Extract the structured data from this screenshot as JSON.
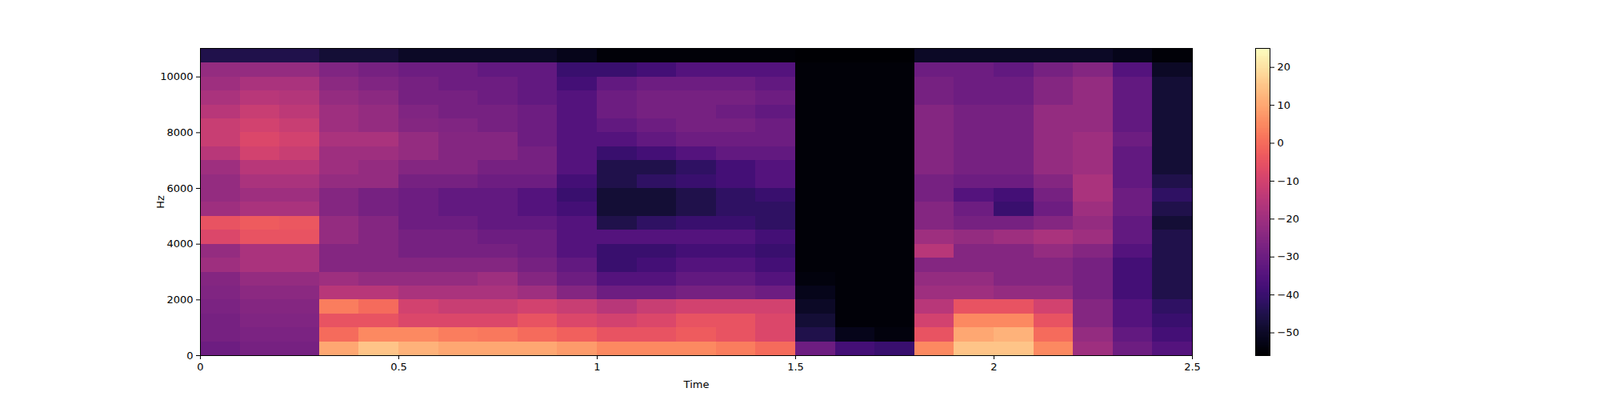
{
  "chart_data": {
    "type": "heatmap",
    "x_label": "Time",
    "y_label": "Hz",
    "xlim": [
      0,
      2.5
    ],
    "ylim": [
      0,
      11025
    ],
    "xticks": [
      0,
      0.5,
      1,
      1.5,
      2,
      2.5
    ],
    "yticks": [
      0,
      2000,
      4000,
      6000,
      8000,
      10000
    ],
    "cells": {
      "time_edges": [
        0,
        0.1,
        0.2,
        0.3,
        0.4,
        0.5,
        0.6,
        0.7,
        0.8,
        0.9,
        1.0,
        1.1,
        1.2,
        1.3,
        1.4,
        1.5,
        1.6,
        1.7,
        1.8,
        1.9,
        2.0,
        2.1,
        2.2,
        2.3,
        2.4,
        2.5
      ],
      "freq_edges": [
        0,
        500,
        1000,
        1500,
        2000,
        2500,
        3000,
        3500,
        4000,
        4500,
        5000,
        5500,
        6000,
        6500,
        7000,
        7500,
        8000,
        8500,
        9000,
        9500,
        10000,
        10500,
        11025
      ],
      "values": [
        [
          -30,
          -28,
          -28,
          -27,
          -26,
          -25,
          -20,
          -22,
          -8,
          -5,
          -20,
          -22,
          -22,
          -20,
          -15,
          -12,
          -12,
          -15,
          -18,
          -20,
          -22,
          -45
        ],
        [
          -28,
          -27,
          -26,
          -25,
          -24,
          -22,
          -18,
          -18,
          -5,
          -3,
          -18,
          -20,
          -18,
          -15,
          -10,
          -8,
          -10,
          -12,
          -15,
          -18,
          -22,
          -45
        ],
        [
          -28,
          -27,
          -26,
          -25,
          -24,
          -22,
          -18,
          -18,
          -5,
          -4,
          -18,
          -20,
          -18,
          -15,
          -12,
          -10,
          -12,
          -14,
          -16,
          -18,
          -22,
          -45
        ],
        [
          10,
          0,
          -5,
          3,
          -15,
          -20,
          -25,
          -25,
          -22,
          -22,
          -25,
          -25,
          -22,
          -20,
          -20,
          -18,
          -20,
          -20,
          -22,
          -24,
          -26,
          -48
        ],
        [
          15,
          5,
          -5,
          0,
          -15,
          -22,
          -25,
          -25,
          -25,
          -25,
          -28,
          -28,
          -22,
          -22,
          -20,
          -18,
          -22,
          -22,
          -24,
          -26,
          -28,
          -48
        ],
        [
          12,
          5,
          -8,
          -10,
          -18,
          -22,
          -25,
          -28,
          -28,
          -30,
          -30,
          -30,
          -28,
          -25,
          -22,
          -22,
          -25,
          -26,
          -28,
          -28,
          -30,
          -50
        ],
        [
          10,
          3,
          -8,
          -12,
          -18,
          -22,
          -25,
          -28,
          -28,
          -30,
          -32,
          -32,
          -28,
          -25,
          -25,
          -25,
          -26,
          -28,
          -28,
          -30,
          -30,
          -50
        ],
        [
          10,
          2,
          -8,
          -12,
          -18,
          -20,
          -25,
          -28,
          -30,
          -32,
          -32,
          -32,
          -30,
          -28,
          -25,
          -25,
          -28,
          -28,
          -30,
          -30,
          -32,
          -50
        ],
        [
          10,
          0,
          -5,
          -10,
          -20,
          -25,
          -28,
          -30,
          -30,
          -32,
          -35,
          -35,
          -30,
          -28,
          -28,
          -30,
          -30,
          -30,
          -32,
          -32,
          -32,
          -50
        ],
        [
          8,
          -2,
          -8,
          -12,
          -25,
          -30,
          -32,
          -35,
          -35,
          -35,
          -38,
          -40,
          -38,
          -35,
          -35,
          -35,
          -35,
          -35,
          -35,
          -38,
          -40,
          -52
        ],
        [
          5,
          -5,
          -10,
          -15,
          -30,
          -35,
          -40,
          -40,
          -35,
          -45,
          -48,
          -48,
          -45,
          -45,
          -40,
          -35,
          -32,
          -30,
          -30,
          -32,
          -40,
          -55
        ],
        [
          5,
          -5,
          -8,
          -12,
          -30,
          -35,
          -38,
          -40,
          -35,
          -42,
          -48,
          -48,
          -42,
          -45,
          -38,
          -32,
          -30,
          -28,
          -28,
          -30,
          -38,
          -55
        ],
        [
          5,
          -3,
          -5,
          -10,
          -28,
          -32,
          -35,
          -38,
          -35,
          -40,
          -45,
          -45,
          -40,
          -42,
          -35,
          -30,
          -28,
          -28,
          -28,
          -30,
          -35,
          -55
        ],
        [
          3,
          -5,
          -5,
          -10,
          -28,
          -32,
          -35,
          -38,
          -35,
          -40,
          -42,
          -42,
          -38,
          -38,
          -32,
          -30,
          -28,
          -30,
          -28,
          -30,
          -35,
          -55
        ],
        [
          0,
          -8,
          -8,
          -10,
          -30,
          -35,
          -38,
          -40,
          -38,
          -42,
          -42,
          -40,
          -35,
          -35,
          -32,
          -30,
          -30,
          -32,
          -30,
          -32,
          -35,
          -55
        ],
        [
          -30,
          -45,
          -48,
          -50,
          -52,
          -54,
          -55,
          -55,
          -55,
          -55,
          -55,
          -55,
          -55,
          -55,
          -55,
          -55,
          -55,
          -55,
          -55,
          -55,
          -55,
          -56
        ],
        [
          -38,
          -52,
          -55,
          -55,
          -55,
          -55,
          -55,
          -55,
          -55,
          -55,
          -55,
          -55,
          -55,
          -55,
          -55,
          -55,
          -55,
          -55,
          -55,
          -55,
          -55,
          -56
        ],
        [
          -40,
          -54,
          -55,
          -55,
          -55,
          -55,
          -55,
          -55,
          -55,
          -55,
          -55,
          -55,
          -55,
          -55,
          -55,
          -55,
          -55,
          -55,
          -55,
          -55,
          -55,
          -56
        ],
        [
          5,
          -5,
          -10,
          -15,
          -20,
          -22,
          -25,
          -15,
          -20,
          -25,
          -25,
          -28,
          -28,
          -25,
          -25,
          -25,
          -25,
          -25,
          -28,
          -28,
          -30,
          -50
        ],
        [
          15,
          10,
          5,
          -5,
          -20,
          -22,
          -25,
          -25,
          -22,
          -28,
          -30,
          -35,
          -30,
          -28,
          -28,
          -28,
          -28,
          -28,
          -30,
          -30,
          -30,
          -50
        ],
        [
          15,
          12,
          5,
          -5,
          -22,
          -25,
          -25,
          -25,
          -20,
          -28,
          -40,
          -38,
          -30,
          -28,
          -28,
          -28,
          -28,
          -28,
          -30,
          -30,
          -32,
          -50
        ],
        [
          5,
          0,
          -5,
          -10,
          -22,
          -25,
          -25,
          -22,
          -18,
          -25,
          -30,
          -28,
          -25,
          -22,
          -22,
          -22,
          -22,
          -22,
          -25,
          -25,
          -28,
          -50
        ],
        [
          -20,
          -22,
          -25,
          -25,
          -28,
          -28,
          -28,
          -25,
          -20,
          -22,
          -20,
          -18,
          -18,
          -20,
          -20,
          -20,
          -22,
          -22,
          -22,
          -22,
          -25,
          -50
        ],
        [
          -30,
          -32,
          -35,
          -35,
          -38,
          -38,
          -38,
          -35,
          -32,
          -32,
          -30,
          -30,
          -32,
          -32,
          -32,
          -30,
          -32,
          -32,
          -32,
          -32,
          -35,
          -52
        ],
        [
          -35,
          -38,
          -40,
          -42,
          -45,
          -45,
          -45,
          -45,
          -45,
          -48,
          -45,
          -42,
          -45,
          -48,
          -48,
          -48,
          -48,
          -48,
          -48,
          -48,
          -50,
          -55
        ]
      ]
    },
    "colorbar": {
      "range": [
        -56,
        25
      ],
      "ticks": [
        -50,
        -40,
        -30,
        -20,
        -10,
        0,
        10,
        20
      ]
    }
  }
}
